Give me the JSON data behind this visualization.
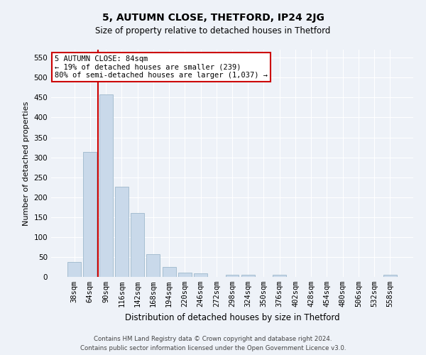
{
  "title": "5, AUTUMN CLOSE, THETFORD, IP24 2JG",
  "subtitle": "Size of property relative to detached houses in Thetford",
  "xlabel": "Distribution of detached houses by size in Thetford",
  "ylabel": "Number of detached properties",
  "categories": [
    "38sqm",
    "64sqm",
    "90sqm",
    "116sqm",
    "142sqm",
    "168sqm",
    "194sqm",
    "220sqm",
    "246sqm",
    "272sqm",
    "298sqm",
    "324sqm",
    "350sqm",
    "376sqm",
    "402sqm",
    "428sqm",
    "454sqm",
    "480sqm",
    "506sqm",
    "532sqm",
    "558sqm"
  ],
  "values": [
    38,
    313,
    458,
    226,
    160,
    57,
    25,
    11,
    9,
    0,
    5,
    6,
    0,
    6,
    0,
    0,
    0,
    0,
    0,
    0,
    5
  ],
  "bar_color": "#c9d9ea",
  "bar_edgecolor": "#9db8cc",
  "vline_color": "#cc0000",
  "vline_bar_index": 2,
  "ylim": [
    0,
    570
  ],
  "yticks": [
    0,
    50,
    100,
    150,
    200,
    250,
    300,
    350,
    400,
    450,
    500,
    550
  ],
  "annotation_text": "5 AUTUMN CLOSE: 84sqm\n← 19% of detached houses are smaller (239)\n80% of semi-detached houses are larger (1,037) →",
  "annotation_box_facecolor": "#ffffff",
  "annotation_box_edgecolor": "#cc0000",
  "footer_line1": "Contains HM Land Registry data © Crown copyright and database right 2024.",
  "footer_line2": "Contains public sector information licensed under the Open Government Licence v3.0.",
  "bg_color": "#eef2f8",
  "grid_color": "#ffffff",
  "title_fontsize": 10,
  "subtitle_fontsize": 8.5,
  "ylabel_fontsize": 8,
  "xlabel_fontsize": 8.5,
  "tick_fontsize": 7.5,
  "annot_fontsize": 7.5,
  "footer_fontsize": 6.2
}
